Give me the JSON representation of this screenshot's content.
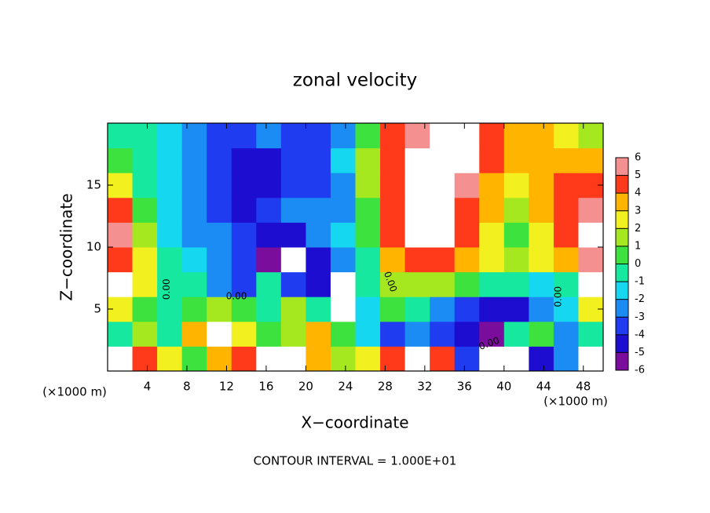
{
  "chart_data": {
    "type": "heatmap",
    "title": "zonal velocity",
    "x_label": "X−coordinate",
    "y_label": "Z−coordinate",
    "x_unit_label": "(×1000 m)",
    "y_unit_label": "(×1000 m)",
    "footnote": "CONTOUR INTERVAL = 1.000E+01",
    "contour_labels": [
      "0.00",
      "0.00",
      "0.00",
      "0.00",
      "0.00"
    ],
    "xlim": [
      0,
      50
    ],
    "ylim": [
      0,
      20
    ],
    "xticks": [
      4,
      8,
      12,
      16,
      20,
      24,
      28,
      32,
      36,
      40,
      44,
      48
    ],
    "yticks": [
      5,
      10,
      15
    ],
    "x_edges": [
      0,
      2.5,
      5,
      7.5,
      10,
      12.5,
      15,
      17.5,
      20,
      22.5,
      25,
      27.5,
      30,
      32.5,
      35,
      37.5,
      40,
      42.5,
      45,
      47.5,
      50
    ],
    "y_edges": [
      0,
      2,
      4,
      6,
      8,
      10,
      12,
      14,
      16,
      18,
      20
    ],
    "values": [
      [
        8,
        5,
        3,
        1,
        4,
        5,
        8,
        7,
        4,
        2,
        3,
        5,
        8,
        5,
        -3,
        8,
        8,
        -4,
        -2,
        8
      ],
      [
        0,
        2,
        0,
        4,
        8,
        3,
        1,
        2,
        4,
        1,
        -1,
        -3,
        -2,
        -3,
        -4,
        -5,
        0,
        1,
        -2,
        0
      ],
      [
        3,
        1,
        0,
        1,
        2,
        1,
        0,
        2,
        0,
        8,
        -1,
        1,
        0,
        -2,
        -3,
        -4,
        -4,
        -2,
        -1,
        3
      ],
      [
        8,
        3,
        0,
        0,
        -2,
        -3,
        0,
        -3,
        -4,
        8,
        0,
        2,
        2,
        2,
        1,
        0,
        0,
        -1,
        0,
        8
      ],
      [
        5,
        3,
        0,
        -1,
        -2,
        -3,
        -5,
        8,
        -4,
        -2,
        0,
        4,
        5,
        5,
        4,
        3,
        2,
        3,
        4,
        6
      ],
      [
        6,
        2,
        -1,
        -2,
        -2,
        -3,
        -4,
        -4,
        -2,
        -1,
        1,
        5,
        8,
        7,
        5,
        3,
        1,
        3,
        5,
        8
      ],
      [
        5,
        1,
        -1,
        -2,
        -3,
        -4,
        -3,
        -2,
        -2,
        -2,
        1,
        5,
        8,
        8,
        5,
        4,
        2,
        4,
        5,
        6
      ],
      [
        3,
        0,
        -1,
        -2,
        -3,
        -4,
        -4,
        -3,
        -3,
        -2,
        2,
        5,
        8,
        8,
        6,
        4,
        3,
        4,
        5,
        5
      ],
      [
        1,
        0,
        -1,
        -2,
        -3,
        -4,
        -4,
        -3,
        -3,
        -1,
        2,
        5,
        8,
        8,
        7,
        5,
        4,
        4,
        4,
        4
      ],
      [
        0,
        0,
        -1,
        -2,
        -3,
        -3,
        -2,
        -3,
        -3,
        -2,
        1,
        5,
        6,
        8,
        7,
        5,
        4,
        4,
        3,
        2
      ]
    ],
    "levels": [
      -6,
      -5,
      -4,
      -3,
      -2,
      -1,
      0,
      1,
      2,
      3,
      4,
      5,
      6
    ],
    "colors": [
      "#7a0d9c",
      "#1c0dd0",
      "#1f3cf0",
      "#1c8cf5",
      "#16d7f0",
      "#16e8a0",
      "#3ee23e",
      "#a6e820",
      "#f3f020",
      "#ffb400",
      "#ff3a1a",
      "#f49090"
    ],
    "over_color": "#ffffff"
  }
}
